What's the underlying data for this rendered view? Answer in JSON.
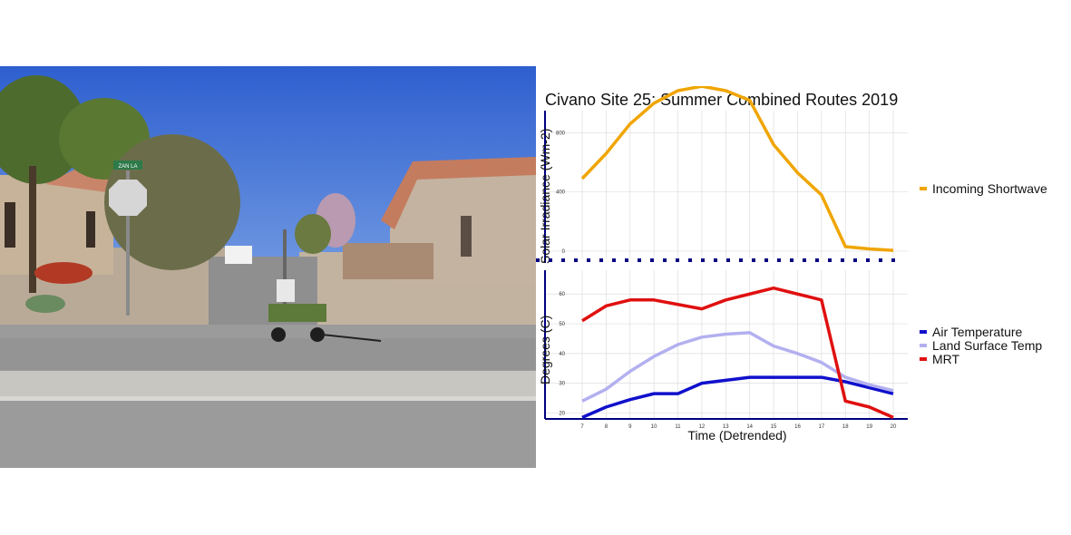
{
  "photo": {
    "street_sign_text": "ZAN LA",
    "colors": {
      "sky": "#3e6fd6",
      "road": "#9a9a9a",
      "roof": "#c97f63",
      "stucco": "#c9b8a5",
      "foliage": "#4d6a2c",
      "cart": "#5d7a3a"
    }
  },
  "chart_data": [
    {
      "type": "line",
      "title": "Civano Site 25: Summer Combined Routes 2019",
      "ylabel": "Solar Irradiance (Wm-2)",
      "xlabel": "",
      "ylim": [
        -25,
        950
      ],
      "yticks": [
        0,
        400,
        800
      ],
      "grid": true,
      "legend_position": "right",
      "x": [
        7,
        8,
        9,
        10,
        11,
        12,
        13,
        14,
        15,
        16,
        17,
        18,
        19,
        20
      ],
      "series": [
        {
          "name": "Incoming Shortwave",
          "color": "#f0a500",
          "values": [
            490,
            660,
            860,
            1000,
            1085,
            1115,
            1085,
            1020,
            720,
            530,
            380,
            30,
            15,
            5
          ]
        }
      ]
    },
    {
      "type": "line",
      "title": "",
      "ylabel": "Degrees (C)",
      "xlabel": "Time (Detrended)",
      "ylim": [
        18,
        68
      ],
      "yticks": [
        20,
        30,
        40,
        50,
        60
      ],
      "xticks": [
        "7",
        "8",
        "9",
        "10",
        "11",
        "12",
        "13",
        "14",
        "15",
        "16",
        "17",
        "18",
        "19",
        "20"
      ],
      "grid": true,
      "legend_position": "right",
      "x": [
        7,
        8,
        9,
        10,
        11,
        12,
        13,
        14,
        15,
        16,
        17,
        18,
        19,
        20
      ],
      "series": [
        {
          "name": "Air Temperature",
          "color": "#1010cc",
          "values": [
            18.5,
            22,
            24.5,
            26.5,
            26.5,
            30,
            31,
            32,
            32,
            32,
            32,
            30.5,
            28.5,
            26.5
          ]
        },
        {
          "name": "Land Surface Temp",
          "color": "#b3b0f0",
          "values": [
            24,
            28,
            34,
            39,
            43,
            45.5,
            46.5,
            47,
            42.5,
            40,
            37,
            32,
            29.5,
            27.5
          ]
        },
        {
          "name": "MRT",
          "color": "#e01010",
          "values": [
            51,
            56,
            58,
            58,
            56.5,
            55,
            58,
            60,
            62,
            60,
            58,
            24,
            22,
            18.5
          ]
        }
      ]
    }
  ]
}
